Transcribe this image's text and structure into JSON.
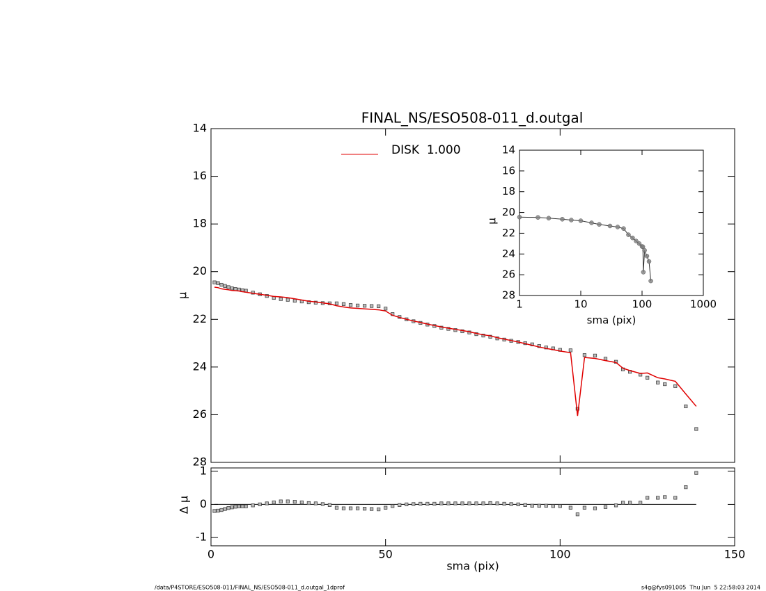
{
  "chart_data": [
    {
      "type": "line",
      "title": "FINAL_NS/ESO508-011_d.outgal",
      "ylabel": "μ",
      "xlim": [
        0,
        150
      ],
      "xticks": [
        0,
        50,
        100,
        150
      ],
      "ylim": [
        14,
        28
      ],
      "y_inverted": true,
      "yticks": [
        14,
        16,
        18,
        20,
        22,
        24,
        26,
        28
      ],
      "legend": "upper-left",
      "x": [
        1,
        2,
        3,
        4,
        5,
        6,
        7,
        8,
        9,
        10,
        12,
        14,
        16,
        18,
        20,
        22,
        24,
        26,
        28,
        30,
        32,
        34,
        36,
        38,
        40,
        42,
        44,
        46,
        48,
        50,
        52,
        54,
        56,
        58,
        60,
        62,
        64,
        66,
        68,
        70,
        72,
        74,
        76,
        78,
        80,
        82,
        84,
        86,
        88,
        90,
        92,
        94,
        96,
        98,
        100,
        103,
        105,
        107,
        110,
        113,
        116,
        118,
        120,
        123,
        125,
        128,
        130,
        133,
        136,
        139
      ],
      "series": [
        {
          "color": "#808080",
          "values": [
            20.45,
            20.48,
            20.55,
            20.6,
            20.65,
            20.7,
            20.73,
            20.75,
            20.78,
            20.8,
            20.88,
            20.95,
            21.02,
            21.1,
            21.15,
            21.18,
            21.22,
            21.25,
            21.28,
            21.3,
            21.32,
            21.33,
            21.33,
            21.36,
            21.4,
            21.42,
            21.43,
            21.44,
            21.45,
            21.55,
            21.78,
            21.9,
            22.0,
            22.08,
            22.15,
            22.22,
            22.28,
            22.35,
            22.4,
            22.45,
            22.5,
            22.55,
            22.62,
            22.68,
            22.73,
            22.8,
            22.85,
            22.9,
            22.95,
            23.0,
            23.05,
            23.12,
            23.18,
            23.22,
            23.28,
            23.3,
            25.75,
            23.5,
            23.52,
            23.65,
            23.78,
            24.1,
            24.2,
            24.32,
            24.45,
            24.65,
            24.72,
            24.8,
            25.65,
            26.6
          ]
        },
        {
          "name": "DISK  1.000",
          "color": "#e00000",
          "values": [
            20.65,
            20.67,
            20.72,
            20.74,
            20.76,
            20.79,
            20.8,
            20.81,
            20.84,
            20.86,
            20.91,
            20.95,
            20.99,
            21.04,
            21.06,
            21.09,
            21.14,
            21.19,
            21.24,
            21.27,
            21.31,
            21.35,
            21.43,
            21.48,
            21.52,
            21.54,
            21.56,
            21.58,
            21.6,
            21.65,
            21.83,
            21.92,
            22.0,
            22.07,
            22.13,
            22.2,
            22.26,
            22.32,
            22.37,
            22.42,
            22.47,
            22.52,
            22.59,
            22.65,
            22.69,
            22.77,
            22.83,
            22.89,
            22.95,
            23.02,
            23.09,
            23.16,
            23.22,
            23.27,
            23.33,
            23.4,
            26.05,
            23.6,
            23.64,
            23.73,
            23.81,
            24.05,
            24.15,
            24.27,
            24.25,
            24.45,
            24.5,
            24.6,
            25.13,
            25.65
          ]
        }
      ]
    },
    {
      "type": "scatter",
      "xlabel": "sma (pix)",
      "ylabel": "Δ μ",
      "xlim": [
        0,
        150
      ],
      "xticks": [
        0,
        50,
        100,
        150
      ],
      "ylim": [
        -1.25,
        1.1
      ],
      "yticks": [
        -1,
        0,
        1
      ],
      "reference_line": 0,
      "x": [
        1,
        2,
        3,
        4,
        5,
        6,
        7,
        8,
        9,
        10,
        12,
        14,
        16,
        18,
        20,
        22,
        24,
        26,
        28,
        30,
        32,
        34,
        36,
        38,
        40,
        42,
        44,
        46,
        48,
        50,
        52,
        54,
        56,
        58,
        60,
        62,
        64,
        66,
        68,
        70,
        72,
        74,
        76,
        78,
        80,
        82,
        84,
        86,
        88,
        90,
        92,
        94,
        96,
        98,
        100,
        103,
        105,
        107,
        110,
        113,
        116,
        118,
        120,
        123,
        125,
        128,
        130,
        133,
        136,
        139
      ],
      "series": [
        {
          "color": "#808080",
          "values": [
            -0.2,
            -0.19,
            -0.17,
            -0.14,
            -0.11,
            -0.09,
            -0.07,
            -0.06,
            -0.06,
            -0.06,
            -0.03,
            0.0,
            0.03,
            0.06,
            0.09,
            0.09,
            0.08,
            0.06,
            0.04,
            0.03,
            0.01,
            -0.02,
            -0.1,
            -0.12,
            -0.12,
            -0.12,
            -0.13,
            -0.14,
            -0.15,
            -0.1,
            -0.05,
            -0.02,
            0.0,
            0.01,
            0.02,
            0.02,
            0.02,
            0.03,
            0.03,
            0.03,
            0.03,
            0.03,
            0.03,
            0.03,
            0.04,
            0.03,
            0.02,
            0.01,
            0.0,
            -0.02,
            -0.04,
            -0.04,
            -0.04,
            -0.05,
            -0.05,
            -0.1,
            -0.3,
            -0.1,
            -0.12,
            -0.08,
            -0.03,
            0.05,
            0.05,
            0.05,
            0.2,
            0.2,
            0.22,
            0.2,
            0.52,
            0.95
          ]
        }
      ]
    },
    {
      "type": "scatter",
      "xlabel": "sma (pix)",
      "ylabel": "μ",
      "xlog": true,
      "xlim": [
        1,
        1000
      ],
      "xticks": [
        1,
        10,
        100,
        1000
      ],
      "ylim": [
        14,
        28
      ],
      "y_inverted": true,
      "yticks": [
        14,
        16,
        18,
        20,
        22,
        24,
        26,
        28
      ],
      "x": [
        1,
        2,
        3,
        5,
        7,
        10,
        15,
        20,
        30,
        40,
        50,
        60,
        70,
        80,
        90,
        100,
        103,
        105,
        110,
        120,
        130,
        139
      ],
      "series": [
        {
          "color": "#808080",
          "values": [
            20.45,
            20.48,
            20.55,
            20.65,
            20.73,
            20.8,
            21.0,
            21.15,
            21.3,
            21.4,
            21.55,
            22.15,
            22.45,
            22.75,
            23.0,
            23.28,
            23.3,
            25.75,
            23.65,
            24.2,
            24.72,
            26.6
          ]
        }
      ]
    }
  ],
  "footer": {
    "path": "/data/P4STORE/ESO508-011/FINAL_NS/ESO508-011_d.outgal_1dprof",
    "stamp": "s4g@fys091005  Thu Jun  5 22:58:03 2014"
  }
}
